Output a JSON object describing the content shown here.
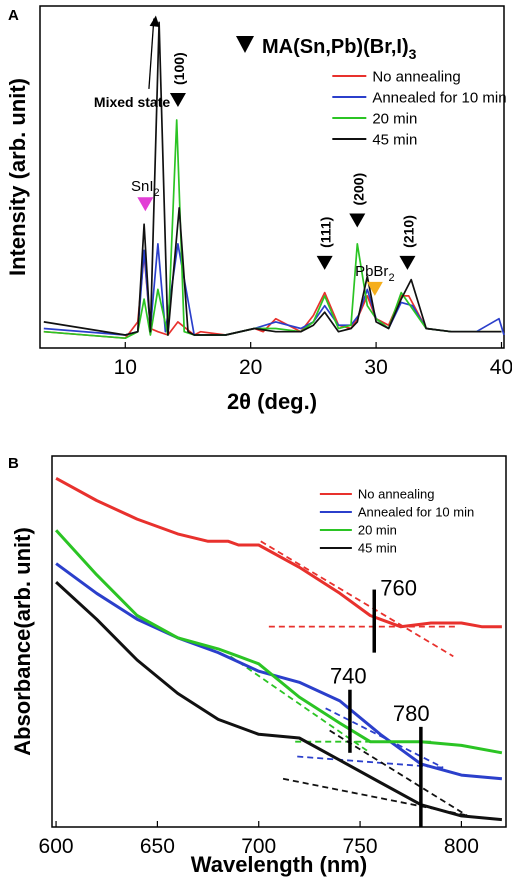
{
  "chart_data": [
    {
      "type": "line",
      "panel_label": "A",
      "title": "MA(Sn,Pb)(Br,I)",
      "title_subscript": "3",
      "xlabel": "2θ (deg.)",
      "ylabel": "Intensity (arb. unit)",
      "xlim": [
        3.2,
        40.2
      ],
      "ylim": [
        0,
        105
      ],
      "xticks": [
        10,
        20,
        30,
        40
      ],
      "grid": false,
      "legend_position": "top-right",
      "series": [
        {
          "name": "No annealing",
          "color": "#e8312d",
          "x": [
            3.5,
            10,
            11,
            11.5,
            12,
            12.6,
            13.4,
            14.2,
            15.5,
            16,
            18,
            20.3,
            21,
            22,
            24,
            25,
            25.9,
            27,
            28,
            28.5,
            29.3,
            30,
            31,
            32,
            32.6,
            34,
            36,
            38,
            40
          ],
          "y": [
            5,
            3,
            8,
            29,
            6,
            5,
            4,
            8,
            4,
            5,
            4,
            6,
            5,
            9,
            5,
            10,
            17,
            7,
            6,
            9,
            16,
            9,
            7,
            16,
            16,
            6,
            5,
            5,
            5
          ]
        },
        {
          "name": "Annealed for 10 min",
          "color": "#2b3fcb",
          "x": [
            3.5,
            10,
            11,
            11.5,
            12,
            12.6,
            13.2,
            14.2,
            15.5,
            18,
            20.3,
            22,
            24,
            25,
            25.9,
            27,
            28,
            28.6,
            29.3,
            30,
            31,
            32,
            32.9,
            34,
            36,
            38,
            39.8,
            40.2
          ],
          "y": [
            6,
            4,
            5,
            30,
            6,
            32,
            5,
            32,
            4,
            4,
            6,
            8,
            6,
            8,
            13,
            7,
            7,
            10,
            18,
            9,
            6,
            14,
            13,
            6,
            5,
            5,
            9,
            4
          ]
        },
        {
          "name": "20 min",
          "color": "#2bc424",
          "x": [
            3.5,
            10,
            11,
            11.5,
            12,
            12.6,
            13.4,
            14.1,
            14.7,
            15.5,
            18,
            20.3,
            22,
            24,
            25,
            25.9,
            27,
            28,
            28.5,
            29.3,
            30,
            31,
            32,
            32.9,
            34,
            36,
            38,
            40
          ],
          "y": [
            5,
            3,
            5,
            15,
            4,
            18,
            4,
            70,
            5,
            4,
            4,
            6,
            6,
            5,
            8,
            16,
            6,
            7,
            32,
            13,
            9,
            6,
            17,
            12,
            6,
            5,
            5,
            5
          ]
        },
        {
          "name": "45 min",
          "color": "#111111",
          "x": [
            3.5,
            10,
            11,
            11.5,
            12,
            12.7,
            13.4,
            14.3,
            15,
            15.5,
            18,
            20.3,
            22,
            24,
            25,
            25.9,
            27,
            28,
            28.5,
            29.3,
            30,
            31,
            32,
            32.8,
            34,
            36,
            38,
            40
          ],
          "y": [
            8,
            4,
            5,
            38,
            5,
            100,
            4,
            43,
            5,
            4,
            4,
            6,
            5,
            5,
            7,
            11,
            5,
            6,
            8,
            22,
            8,
            6,
            15,
            21,
            6,
            5,
            5,
            5
          ]
        }
      ],
      "peak_markers": [
        {
          "label": "(100)",
          "color": "#000000",
          "x": 14.2,
          "y": 74,
          "label_vertical": true
        },
        {
          "label": "(111)",
          "color": "#000000",
          "x": 25.9,
          "y": 24,
          "label_vertical": true
        },
        {
          "label": "(200)",
          "color": "#000000",
          "x": 28.5,
          "y": 37,
          "label_vertical": true
        },
        {
          "label": "(210)",
          "color": "#000000",
          "x": 32.5,
          "y": 24,
          "label_vertical": true
        },
        {
          "label": "SnI",
          "label_subscript": "2",
          "color": "#e23fd5",
          "x": 11.6,
          "y": 42,
          "label_vertical": false
        },
        {
          "label": "PbBr",
          "label_subscript": "2",
          "color": "#f5ae1c",
          "x": 29.9,
          "y": 16,
          "label_vertical": false
        }
      ],
      "annotations": [
        {
          "text": "Mixed state",
          "x": 7.5,
          "y": 74,
          "arrow_to_x": 12.6,
          "arrow_to_y": 103
        }
      ]
    },
    {
      "type": "line",
      "panel_label": "B",
      "xlabel": "Wavelength (nm)",
      "ylabel": "Absorbance(arb. unit)",
      "xlim": [
        598,
        822
      ],
      "ylim": [
        0,
        100
      ],
      "xticks": [
        600,
        650,
        700,
        750,
        800
      ],
      "grid": false,
      "legend_position": "top-right",
      "series": [
        {
          "name": "No annealing",
          "color": "#e8312d",
          "x": [
            600,
            620,
            640,
            660,
            675,
            685,
            690,
            700,
            720,
            740,
            755,
            770,
            785,
            800,
            810,
            820
          ],
          "y": [
            94,
            88,
            83,
            79,
            77,
            77,
            76,
            76,
            70,
            63,
            57,
            54,
            55,
            55,
            54,
            54
          ]
        },
        {
          "name": "Annealed for 10 min",
          "color": "#2b3fcb",
          "x": [
            600,
            620,
            640,
            660,
            680,
            700,
            720,
            740,
            760,
            780,
            800,
            820
          ],
          "y": [
            71,
            63,
            56,
            51,
            47,
            42,
            39,
            34,
            25,
            17,
            14,
            13
          ]
        },
        {
          "name": "20 min",
          "color": "#2bc424",
          "x": [
            600,
            620,
            640,
            660,
            680,
            690,
            700,
            720,
            740,
            755,
            760,
            780,
            800,
            820
          ],
          "y": [
            80,
            68,
            57,
            51,
            48,
            46,
            44,
            35,
            28,
            23,
            23,
            23,
            22,
            20
          ]
        },
        {
          "name": "45 min",
          "color": "#111111",
          "x": [
            600,
            620,
            640,
            660,
            680,
            700,
            720,
            740,
            760,
            780,
            800,
            820
          ],
          "y": [
            66,
            56,
            45,
            36,
            29,
            25,
            24,
            18,
            12,
            6,
            3,
            2
          ]
        }
      ],
      "fit_lines": [
        {
          "color": "#e8312d",
          "x": [
            701,
            796
          ],
          "y": [
            77,
            46
          ]
        },
        {
          "color": "#e8312d",
          "x": [
            705,
            797
          ],
          "y": [
            54,
            54
          ]
        },
        {
          "color": "#2bc424",
          "x": [
            686,
            755
          ],
          "y": [
            46,
            20
          ]
        },
        {
          "color": "#2bc424",
          "x": [
            718,
            785
          ],
          "y": [
            23,
            23
          ]
        },
        {
          "color": "#2b3fcb",
          "x": [
            733,
            791
          ],
          "y": [
            32,
            16
          ]
        },
        {
          "color": "#2b3fcb",
          "x": [
            719,
            791
          ],
          "y": [
            19,
            16
          ]
        },
        {
          "color": "#111111",
          "x": [
            735,
            803
          ],
          "y": [
            26,
            3
          ]
        },
        {
          "color": "#111111",
          "x": [
            712,
            804
          ],
          "y": [
            13,
            3
          ]
        }
      ],
      "markers": [
        {
          "label": "760",
          "x": 757,
          "y_from": 47,
          "y_to": 64
        },
        {
          "label": "740",
          "x": 745,
          "y_from": 20,
          "y_to": 37
        },
        {
          "label": "780",
          "x": 780,
          "y_from": 0,
          "y_to": 27
        }
      ]
    }
  ]
}
